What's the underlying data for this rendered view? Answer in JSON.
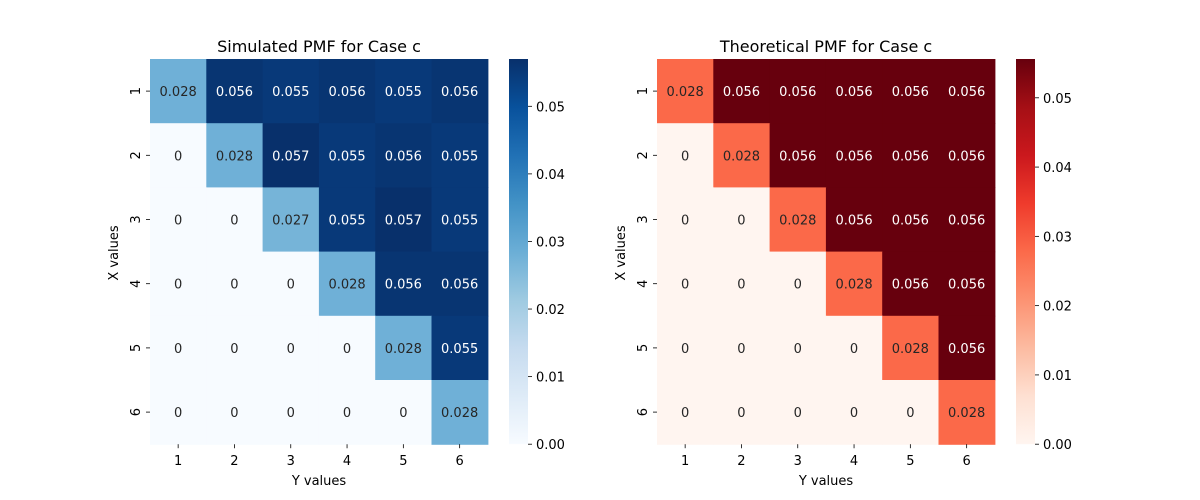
{
  "chart_data": [
    {
      "type": "heatmap",
      "title": "Simulated PMF for Case c",
      "xlabel": "Y values",
      "ylabel": "X values",
      "x_categories": [
        "1",
        "2",
        "3",
        "4",
        "5",
        "6"
      ],
      "y_categories": [
        "1",
        "2",
        "3",
        "4",
        "5",
        "6"
      ],
      "values": [
        [
          "0.028",
          "0.056",
          "0.055",
          "0.056",
          "0.055",
          "0.056"
        ],
        [
          "0",
          "0.028",
          "0.057",
          "0.055",
          "0.056",
          "0.055"
        ],
        [
          "0",
          "0",
          "0.027",
          "0.055",
          "0.057",
          "0.055"
        ],
        [
          "0",
          "0",
          "0",
          "0.028",
          "0.056",
          "0.056"
        ],
        [
          "0",
          "0",
          "0",
          "0",
          "0.028",
          "0.055"
        ],
        [
          "0",
          "0",
          "0",
          "0",
          "0",
          "0.028"
        ]
      ],
      "colormap": "Blues",
      "vmin": 0,
      "vmax": 0.057,
      "colorbar_ticks": [
        "0.00",
        "0.01",
        "0.02",
        "0.03",
        "0.04",
        "0.05"
      ]
    },
    {
      "type": "heatmap",
      "title": "Theoretical PMF for Case c",
      "xlabel": "Y values",
      "ylabel": "X values",
      "x_categories": [
        "1",
        "2",
        "3",
        "4",
        "5",
        "6"
      ],
      "y_categories": [
        "1",
        "2",
        "3",
        "4",
        "5",
        "6"
      ],
      "values": [
        [
          "0.028",
          "0.056",
          "0.056",
          "0.056",
          "0.056",
          "0.056"
        ],
        [
          "0",
          "0.028",
          "0.056",
          "0.056",
          "0.056",
          "0.056"
        ],
        [
          "0",
          "0",
          "0.028",
          "0.056",
          "0.056",
          "0.056"
        ],
        [
          "0",
          "0",
          "0",
          "0.028",
          "0.056",
          "0.056"
        ],
        [
          "0",
          "0",
          "0",
          "0",
          "0.028",
          "0.056"
        ],
        [
          "0",
          "0",
          "0",
          "0",
          "0",
          "0.028"
        ]
      ],
      "colormap": "Reds",
      "vmin": 0,
      "vmax": 0.0556,
      "colorbar_ticks": [
        "0.00",
        "0.01",
        "0.02",
        "0.03",
        "0.04",
        "0.05"
      ]
    }
  ],
  "colormaps": {
    "Blues": [
      "#f7fbff",
      "#deebf7",
      "#c6dbef",
      "#9ecae1",
      "#6baed6",
      "#4292c6",
      "#2171b5",
      "#08519c",
      "#08306b"
    ],
    "Reds": [
      "#fff5f0",
      "#fee0d2",
      "#fcbba1",
      "#fc9272",
      "#fb6a4a",
      "#ef3b2c",
      "#cb181d",
      "#a50f15",
      "#67000d"
    ]
  }
}
